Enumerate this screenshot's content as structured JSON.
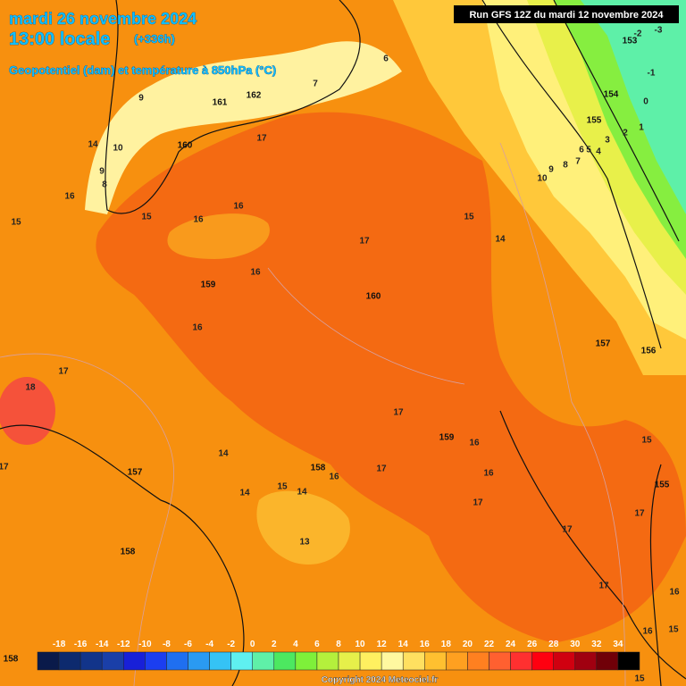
{
  "header": {
    "date": "mardi 26 novembre 2024",
    "time": "13:00 locale",
    "lead": "(+336h)",
    "subtitle": "Geopotentiel (dam) et température à 850hPa (°C)",
    "run": "Run GFS 12Z du mardi 12 novembre 2024"
  },
  "map": {
    "geopotential_labels": [
      153,
      154,
      155,
      162,
      161,
      160,
      159,
      160,
      157,
      156,
      159,
      158,
      157,
      158,
      155,
      158
    ],
    "temperature_labels": [
      14,
      16,
      15,
      15,
      16,
      16,
      17,
      17,
      16,
      16,
      15,
      14,
      10,
      17,
      18,
      17,
      17,
      16,
      16,
      16,
      17,
      14,
      14,
      15,
      14,
      13,
      17,
      17,
      17,
      16,
      15,
      16,
      15,
      15,
      17,
      -3,
      -2,
      -1,
      0,
      1,
      2,
      3,
      4,
      5,
      6,
      7,
      8,
      9,
      9,
      8,
      10,
      9,
      7,
      6
    ]
  },
  "legend": {
    "ticks": [
      -18,
      -16,
      -14,
      -12,
      -10,
      -8,
      -6,
      -4,
      -2,
      0,
      2,
      4,
      6,
      8,
      10,
      12,
      14,
      16,
      18,
      20,
      22,
      24,
      26,
      28,
      30,
      32,
      34
    ],
    "colors": [
      "#0a1a4a",
      "#0d2a6e",
      "#12348a",
      "#1a3fa8",
      "#1820d8",
      "#1b3ef0",
      "#1f6ff0",
      "#2a9af2",
      "#35c3f5",
      "#5ff0f0",
      "#5ff0a8",
      "#4ce860",
      "#7ef03a",
      "#b4f03c",
      "#e6f04a",
      "#fff060",
      "#fff8a0",
      "#ffe060",
      "#ffc030",
      "#ffa020",
      "#ff8020",
      "#ff6030",
      "#ff3030",
      "#ff0010",
      "#d00010",
      "#a00010",
      "#700008",
      "#000000"
    ]
  },
  "footer": {
    "copyright": "Copyright 2024 Meteociel.fr"
  }
}
